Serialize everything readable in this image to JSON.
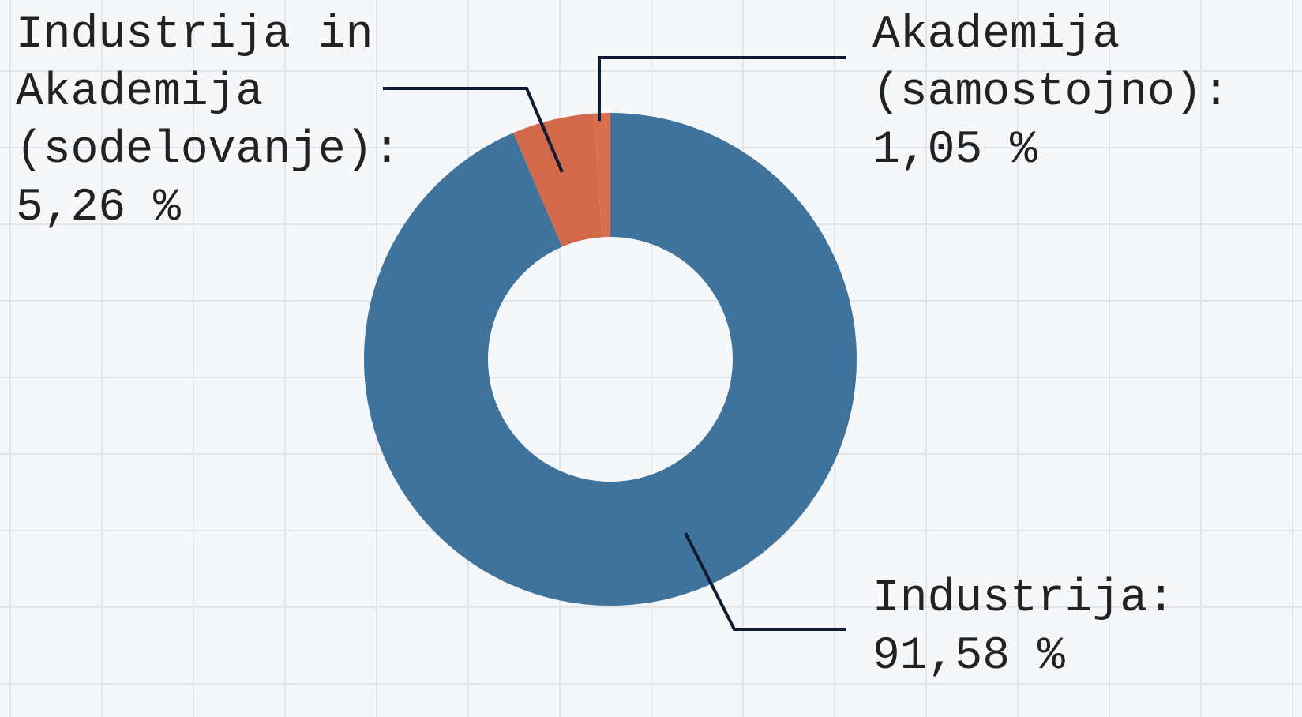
{
  "chart_data": {
    "type": "pie",
    "categories": [
      "Industrija:",
      "Industrija in Akademija (sodelovanje):",
      "Akademija (samostojno):"
    ],
    "values": [
      91.58,
      5.26,
      1.05
    ],
    "value_labels": [
      "91,58 %",
      "5,26 %",
      "1,05 %"
    ],
    "colors": [
      "#3f739c",
      "#d2694b",
      "#d86f4f"
    ]
  }
}
